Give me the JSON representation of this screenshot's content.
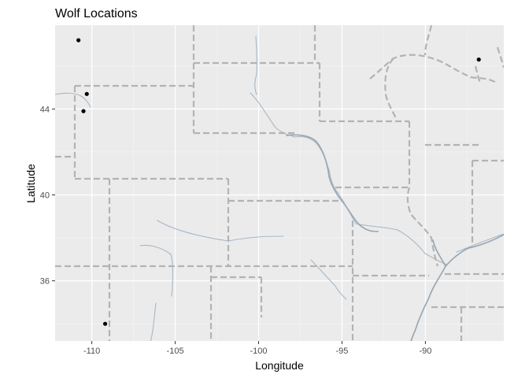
{
  "chart_data": {
    "type": "scatter",
    "title": "Wolf Locations",
    "xlabel": "Longitude",
    "ylabel": "Latitude",
    "xlim": [
      -112.2,
      -85.3
    ],
    "ylim": [
      33.2,
      47.9
    ],
    "x_ticks": [
      -110,
      -105,
      -100,
      -95,
      -90
    ],
    "x_tick_labels": [
      "-110",
      "-105",
      "-100",
      "-95",
      "-90"
    ],
    "y_ticks": [
      36,
      40,
      44
    ],
    "y_tick_labels": [
      "36",
      "40",
      "44"
    ],
    "grid": true,
    "legend": "none",
    "colors": {
      "panel_background": "#ebebeb",
      "major_grid": "#ffffff",
      "minor_grid": "#f5f5f5",
      "state_borders": "#b3b3b3",
      "rivers": "#a7b7c6",
      "points": "#000000"
    },
    "points": [
      {
        "x": -110.8,
        "y": 47.2
      },
      {
        "x": -110.3,
        "y": 44.7
      },
      {
        "x": -110.5,
        "y": 43.9
      },
      {
        "x": -109.2,
        "y": 34.0
      },
      {
        "x": -86.8,
        "y": 46.3
      }
    ]
  }
}
